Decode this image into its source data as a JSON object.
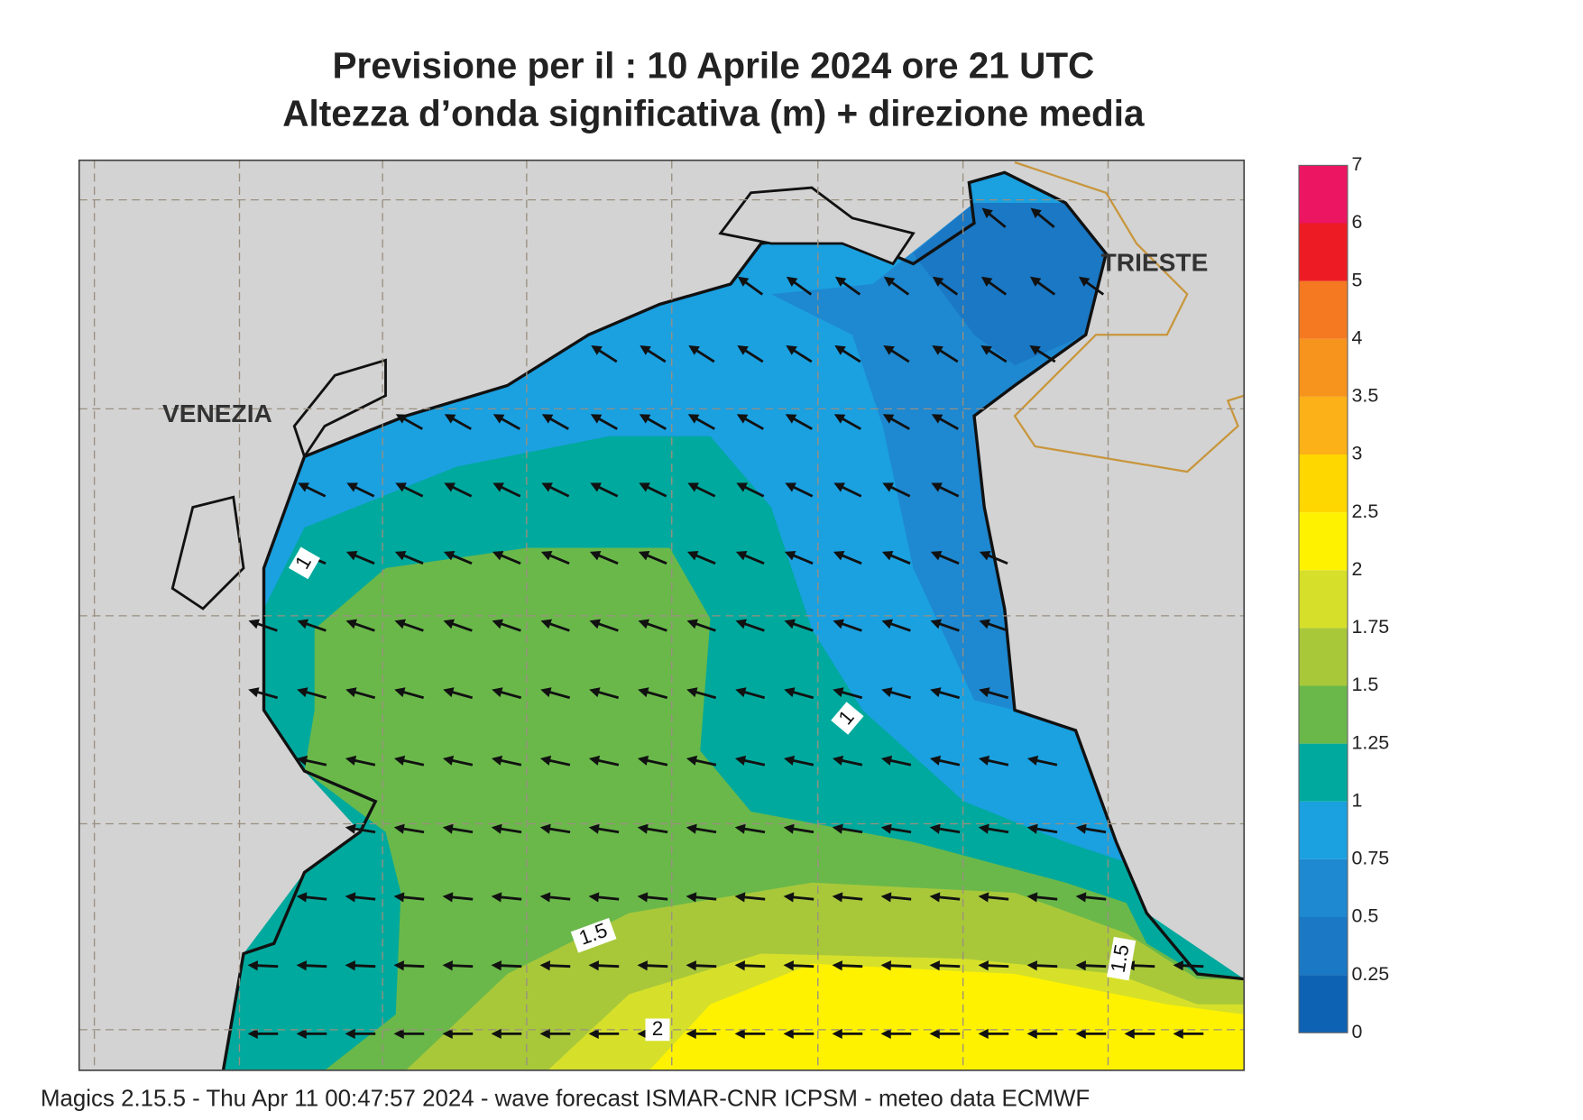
{
  "header": {
    "title": "Previsione per il  :  10   Aprile  2024   ore 21 UTC",
    "subtitle": "Altezza d’onda significativa (m) + direzione media"
  },
  "places": [
    "VENEZIA",
    "TRIESTE"
  ],
  "contour_labels": [
    1,
    1,
    1.5,
    1.5,
    2
  ],
  "colorbar": {
    "levels": [
      0,
      0.25,
      0.5,
      0.75,
      1,
      1.25,
      1.5,
      1.75,
      2,
      2.5,
      3,
      3.5,
      4,
      5,
      6,
      7
    ],
    "colors": [
      "#0d62b3",
      "#1a78c4",
      "#1e88d0",
      "#1ba0e0",
      "#00a99d",
      "#6ab84a",
      "#a8c83a",
      "#d6e02a",
      "#fff200",
      "#ffd700",
      "#fbb117",
      "#f7941d",
      "#f47920",
      "#ed1c24",
      "#ec1561"
    ]
  },
  "footer": "Magics 2.15.5 - Thu Apr 11 00:47:57 2024 - wave forecast  ISMAR-CNR  ICPSM - meteo data   ECMWF"
}
